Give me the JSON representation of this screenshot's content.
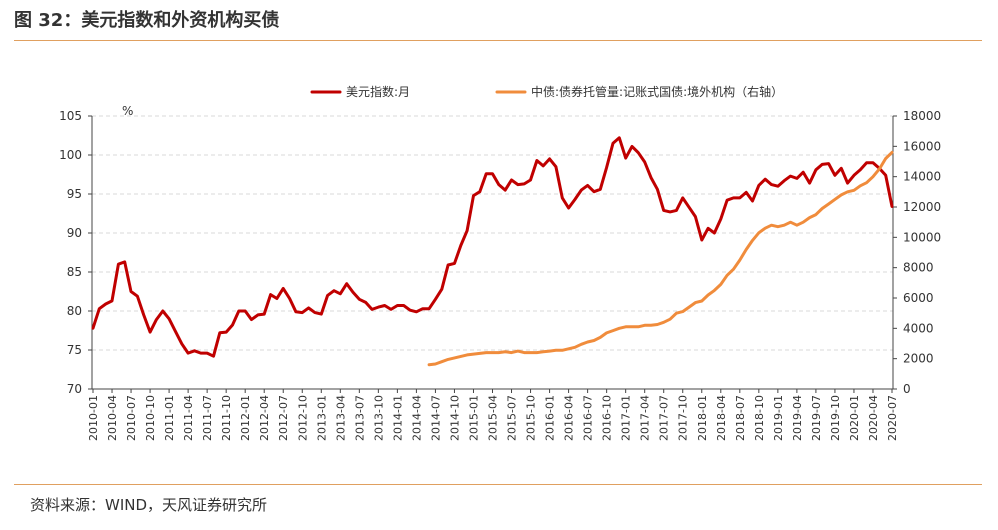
{
  "figure_title": "图 32：美元指数和外资机构买债",
  "source_note": "资料来源：WIND，天风证券研究所",
  "chart_data": {
    "type": "line",
    "title": "图 32：美元指数和外资机构买债",
    "left_unit": "%",
    "y_left_lim": [
      70,
      105
    ],
    "y_left_ticks": [
      70,
      75,
      80,
      85,
      90,
      95,
      100,
      105
    ],
    "y_right_lim": [
      0,
      18000
    ],
    "y_right_ticks": [
      0,
      2000,
      4000,
      6000,
      8000,
      10000,
      12000,
      14000,
      16000,
      18000
    ],
    "x_tick_labels": [
      "2010-01",
      "2010-04",
      "2010-07",
      "2010-10",
      "2011-01",
      "2011-04",
      "2011-07",
      "2011-10",
      "2012-01",
      "2012-04",
      "2012-07",
      "2012-10",
      "2013-01",
      "2013-04",
      "2013-07",
      "2013-10",
      "2014-01",
      "2014-04",
      "2014-07",
      "2014-10",
      "2015-01",
      "2015-04",
      "2015-07",
      "2015-10",
      "2016-01",
      "2016-04",
      "2016-07",
      "2016-10",
      "2017-01",
      "2017-04",
      "2017-07",
      "2017-10",
      "2018-01",
      "2018-04",
      "2018-07",
      "2018-10",
      "2019-01",
      "2019-04",
      "2019-07",
      "2019-10",
      "2020-01",
      "2020-04",
      "2020-07"
    ],
    "grid": true,
    "legend_position": "top",
    "series": [
      {
        "name": "美元指数:月",
        "axis": "left",
        "color": "#c00000",
        "x": [
          "2010-01",
          "2010-02",
          "2010-03",
          "2010-04",
          "2010-05",
          "2010-06",
          "2010-07",
          "2010-08",
          "2010-09",
          "2010-10",
          "2010-11",
          "2010-12",
          "2011-01",
          "2011-02",
          "2011-03",
          "2011-04",
          "2011-05",
          "2011-06",
          "2011-07",
          "2011-08",
          "2011-09",
          "2011-10",
          "2011-11",
          "2011-12",
          "2012-01",
          "2012-02",
          "2012-03",
          "2012-04",
          "2012-05",
          "2012-06",
          "2012-07",
          "2012-08",
          "2012-09",
          "2012-10",
          "2012-11",
          "2012-12",
          "2013-01",
          "2013-02",
          "2013-03",
          "2013-04",
          "2013-05",
          "2013-06",
          "2013-07",
          "2013-08",
          "2013-09",
          "2013-10",
          "2013-11",
          "2013-12",
          "2014-01",
          "2014-02",
          "2014-03",
          "2014-04",
          "2014-05",
          "2014-06",
          "2014-07",
          "2014-08",
          "2014-09",
          "2014-10",
          "2014-11",
          "2014-12",
          "2015-01",
          "2015-02",
          "2015-03",
          "2015-04",
          "2015-05",
          "2015-06",
          "2015-07",
          "2015-08",
          "2015-09",
          "2015-10",
          "2015-11",
          "2015-12",
          "2016-01",
          "2016-02",
          "2016-03",
          "2016-04",
          "2016-05",
          "2016-06",
          "2016-07",
          "2016-08",
          "2016-09",
          "2016-10",
          "2016-11",
          "2016-12",
          "2017-01",
          "2017-02",
          "2017-03",
          "2017-04",
          "2017-05",
          "2017-06",
          "2017-07",
          "2017-08",
          "2017-09",
          "2017-10",
          "2017-11",
          "2017-12",
          "2018-01",
          "2018-02",
          "2018-03",
          "2018-04",
          "2018-05",
          "2018-06",
          "2018-07",
          "2018-08",
          "2018-09",
          "2018-10",
          "2018-11",
          "2018-12",
          "2019-01",
          "2019-02",
          "2019-03",
          "2019-04",
          "2019-05",
          "2019-06",
          "2019-07",
          "2019-08",
          "2019-09",
          "2019-10",
          "2019-11",
          "2019-12",
          "2020-01",
          "2020-02",
          "2020-03",
          "2020-04",
          "2020-05",
          "2020-06",
          "2020-07"
        ],
        "values": [
          77.8,
          80.3,
          80.9,
          81.3,
          86.0,
          86.3,
          82.5,
          81.9,
          79.5,
          77.3,
          78.9,
          80.0,
          79.0,
          77.4,
          75.8,
          74.6,
          74.9,
          74.6,
          74.6,
          74.2,
          77.2,
          77.3,
          78.2,
          80.0,
          80.0,
          78.9,
          79.5,
          79.6,
          82.1,
          81.6,
          82.9,
          81.6,
          79.9,
          79.8,
          80.4,
          79.8,
          79.6,
          82.0,
          82.6,
          82.2,
          83.5,
          82.4,
          81.5,
          81.1,
          80.2,
          80.5,
          80.7,
          80.2,
          80.7,
          80.7,
          80.1,
          79.9,
          80.3,
          80.3,
          81.5,
          82.8,
          85.9,
          86.1,
          88.4,
          90.3,
          94.8,
          95.3,
          97.6,
          97.6,
          96.2,
          95.5,
          96.8,
          96.2,
          96.3,
          96.8,
          99.3,
          98.6,
          99.5,
          98.5,
          94.5,
          93.2,
          94.3,
          95.5,
          96.1,
          95.3,
          95.6,
          98.4,
          101.5,
          102.2,
          99.6,
          101.1,
          100.3,
          99.1,
          97.1,
          95.6,
          92.9,
          92.7,
          92.9,
          94.5,
          93.3,
          92.1,
          89.1,
          90.6,
          90.0,
          91.8,
          94.2,
          94.5,
          94.5,
          95.2,
          94.1,
          96.1,
          96.9,
          96.2,
          96.0,
          96.7,
          97.3,
          97.0,
          97.8,
          96.4,
          98.1,
          98.8,
          98.9,
          97.4,
          98.3,
          96.4,
          97.4,
          98.1,
          99.0,
          99.0,
          98.3,
          97.4,
          93.4
        ],
        "note": "approximate monthly readings"
      },
      {
        "name": "中债:债券托管量:记账式国债:境外机构（右轴）",
        "axis": "right",
        "color": "#f08c3c",
        "x": [
          "2014-06",
          "2014-07",
          "2014-08",
          "2014-09",
          "2014-10",
          "2014-11",
          "2014-12",
          "2015-01",
          "2015-02",
          "2015-03",
          "2015-04",
          "2015-05",
          "2015-06",
          "2015-07",
          "2015-08",
          "2015-09",
          "2015-10",
          "2015-11",
          "2015-12",
          "2016-01",
          "2016-02",
          "2016-03",
          "2016-04",
          "2016-05",
          "2016-06",
          "2016-07",
          "2016-08",
          "2016-09",
          "2016-10",
          "2016-11",
          "2016-12",
          "2017-01",
          "2017-02",
          "2017-03",
          "2017-04",
          "2017-05",
          "2017-06",
          "2017-07",
          "2017-08",
          "2017-09",
          "2017-10",
          "2017-11",
          "2017-12",
          "2018-01",
          "2018-02",
          "2018-03",
          "2018-04",
          "2018-05",
          "2018-06",
          "2018-07",
          "2018-08",
          "2018-09",
          "2018-10",
          "2018-11",
          "2018-12",
          "2019-01",
          "2019-02",
          "2019-03",
          "2019-04",
          "2019-05",
          "2019-06",
          "2019-07",
          "2019-08",
          "2019-09",
          "2019-10",
          "2019-11",
          "2019-12",
          "2020-01",
          "2020-02",
          "2020-03",
          "2020-04",
          "2020-05",
          "2020-06",
          "2020-07"
        ],
        "values": [
          1600,
          1650,
          1800,
          1950,
          2050,
          2150,
          2250,
          2300,
          2350,
          2400,
          2400,
          2400,
          2450,
          2400,
          2500,
          2400,
          2400,
          2400,
          2450,
          2500,
          2550,
          2550,
          2650,
          2750,
          2950,
          3100,
          3200,
          3400,
          3700,
          3850,
          4000,
          4100,
          4100,
          4100,
          4200,
          4200,
          4250,
          4400,
          4600,
          5000,
          5100,
          5400,
          5700,
          5800,
          6200,
          6500,
          6900,
          7500,
          7900,
          8500,
          9200,
          9800,
          10300,
          10600,
          10800,
          10700,
          10800,
          11000,
          10800,
          11000,
          11300,
          11500,
          11900,
          12200,
          12500,
          12800,
          13000,
          13100,
          13400,
          13600,
          14000,
          14500,
          15200,
          15600
        ],
        "note": "approximate monthly readings"
      }
    ]
  }
}
